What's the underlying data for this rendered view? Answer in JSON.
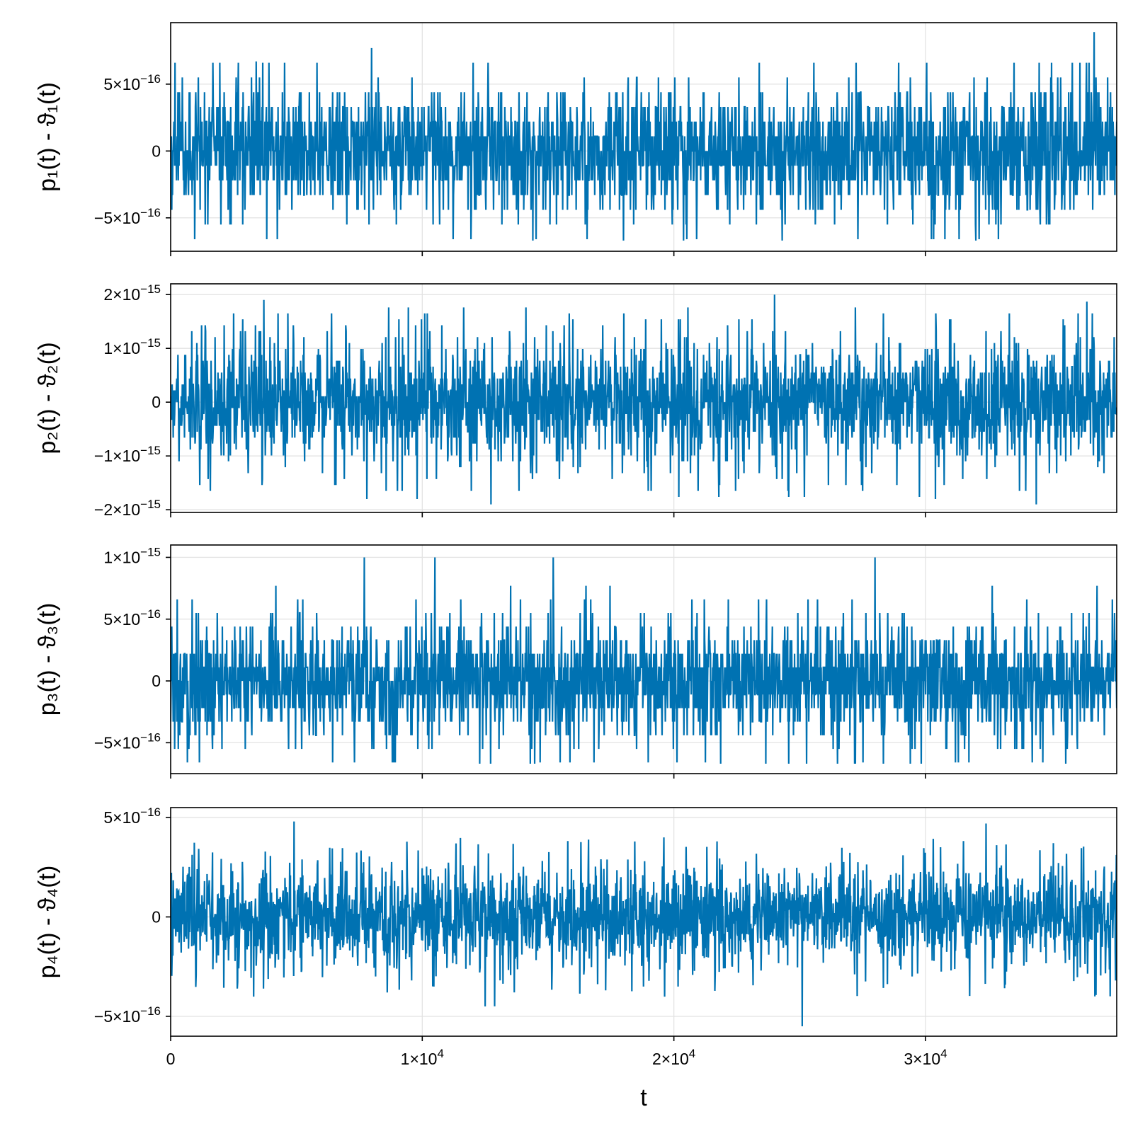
{
  "chart_data": [
    {
      "type": "line",
      "ylabel": "p₁(t) - ϑ₁(t)",
      "xlim": [
        0,
        37600
      ],
      "ylim": [
        -7.5e-16,
        9.6e-16
      ],
      "y_ticks": [
        {
          "value": 5e-16,
          "base": "5×10",
          "exp": "−16"
        },
        {
          "value": 0,
          "base": "0",
          "exp": ""
        },
        {
          "value": -5e-16,
          "base": "−5×10",
          "exp": "−16"
        }
      ],
      "series": [
        {
          "color": "#0072B2",
          "noise_amplitude": 2.2e-16,
          "min": -6.7e-16,
          "max": 8.9e-16,
          "quantized_step": 1.1e-16,
          "envelope": [
            -3.3e-16,
            3.3e-16
          ],
          "spikes": [
            {
              "t": 3400,
              "value": 6.7e-16
            },
            {
              "t": 14400,
              "value": -6.7e-16
            },
            {
              "t": 18000,
              "value": -6.7e-16
            },
            {
              "t": 24300,
              "value": -6.7e-16
            },
            {
              "t": 32000,
              "value": -6.7e-16
            },
            {
              "t": 36700,
              "value": 8.9e-16
            }
          ]
        }
      ]
    },
    {
      "type": "line",
      "ylabel": "p₂(t) - ϑ₂(t)",
      "xlim": [
        0,
        37600
      ],
      "ylim": [
        -2.05e-15,
        2.2e-15
      ],
      "y_ticks": [
        {
          "value": 2e-15,
          "base": "2×10",
          "exp": "−15"
        },
        {
          "value": 1e-15,
          "base": "1×10",
          "exp": "−15"
        },
        {
          "value": 0,
          "base": "0",
          "exp": ""
        },
        {
          "value": -1e-15,
          "base": "−1×10",
          "exp": "−15"
        },
        {
          "value": -2e-15,
          "base": "−2×10",
          "exp": "−15"
        }
      ],
      "series": [
        {
          "color": "#0072B2",
          "noise_amplitude": 5e-16,
          "min": -1.9e-15,
          "max": 2e-15,
          "quantized_step": 1.1e-16,
          "envelope": [
            -1.2e-15,
            1.2e-15
          ],
          "spikes": [
            {
              "t": 24000,
              "value": 2e-15
            },
            {
              "t": 34400,
              "value": -1.9e-15
            },
            {
              "t": 9800,
              "value": -1.8e-15
            },
            {
              "t": 7800,
              "value": -1.8e-15
            },
            {
              "t": 30400,
              "value": -1.8e-15
            },
            {
              "t": 3700,
              "value": 1.9e-15
            }
          ]
        }
      ]
    },
    {
      "type": "line",
      "ylabel": "p₃(t) - ϑ₃(t)",
      "xlim": [
        0,
        37600
      ],
      "ylim": [
        -7.5e-16,
        1.1e-15
      ],
      "y_ticks": [
        {
          "value": 1e-15,
          "base": "1×10",
          "exp": "−15"
        },
        {
          "value": 5e-16,
          "base": "5×10",
          "exp": "−16"
        },
        {
          "value": 0,
          "base": "0",
          "exp": ""
        },
        {
          "value": -5e-16,
          "base": "−5×10",
          "exp": "−16"
        }
      ],
      "series": [
        {
          "color": "#0072B2",
          "noise_amplitude": 2.2e-16,
          "min": -6.7e-16,
          "max": 1e-15,
          "quantized_step": 1.1e-16,
          "envelope": [
            -2.2e-16,
            3.3e-16
          ],
          "spikes": [
            {
              "t": 7700,
              "value": 1e-15
            },
            {
              "t": 10500,
              "value": 1e-15
            },
            {
              "t": 15200,
              "value": 1e-15
            },
            {
              "t": 28000,
              "value": 1e-15
            },
            {
              "t": 26500,
              "value": -6.7e-16
            },
            {
              "t": 29400,
              "value": -6.7e-16
            }
          ]
        }
      ]
    },
    {
      "type": "line",
      "ylabel": "p₄(t) - ϑ₄(t)",
      "xlabel": "t",
      "xlim": [
        0,
        37600
      ],
      "ylim": [
        -6e-16,
        5.5e-16
      ],
      "x_ticks": [
        {
          "value": 0,
          "base": "0",
          "exp": ""
        },
        {
          "value": 10000,
          "base": "1×10",
          "exp": "4"
        },
        {
          "value": 20000,
          "base": "2×10",
          "exp": "4"
        },
        {
          "value": 30000,
          "base": "3×10",
          "exp": "4"
        }
      ],
      "y_ticks": [
        {
          "value": 5e-16,
          "base": "5×10",
          "exp": "−16"
        },
        {
          "value": 0,
          "base": "0",
          "exp": ""
        },
        {
          "value": -5e-16,
          "base": "−5×10",
          "exp": "−16"
        }
      ],
      "series": [
        {
          "color": "#0072B2",
          "noise_amplitude": 1.2e-16,
          "min": -5.5e-16,
          "max": 4.8e-16,
          "quantized_step": 0,
          "envelope": [
            -2.3e-16,
            2.3e-16
          ],
          "spikes": [
            {
              "t": 25100,
              "value": -5.5e-16
            },
            {
              "t": 12500,
              "value": -4.5e-16
            },
            {
              "t": 4900,
              "value": 4.8e-16
            },
            {
              "t": 32400,
              "value": 4.7e-16
            }
          ]
        }
      ]
    }
  ],
  "grid": true,
  "shared_x": true
}
